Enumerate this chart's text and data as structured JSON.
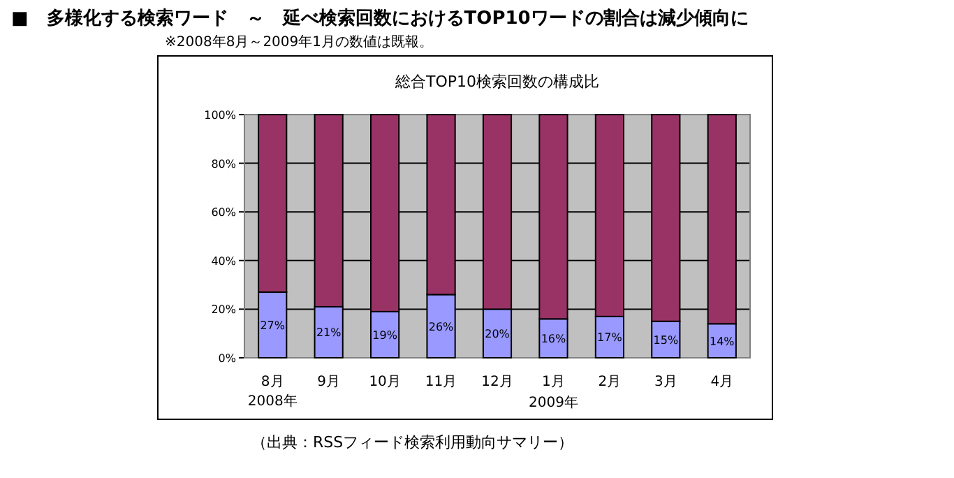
{
  "chart_data": {
    "type": "bar",
    "stacked": true,
    "title": "■　多様化する検索ワード　～　延べ検索回数におけるTOP10ワードの割合は減少傾向に",
    "subtitle": "総合TOP10検索回数の構成比",
    "categories": [
      "8月",
      "9月",
      "10月",
      "11月",
      "12月",
      "1月",
      "2月",
      "3月",
      "4月"
    ],
    "series": [
      {
        "color": "#9999ff",
        "values": [
          27,
          21,
          19,
          26,
          20,
          16,
          17,
          15,
          14
        ],
        "value_labels": [
          "27%",
          "21%",
          "19%",
          "26%",
          "20%",
          "16%",
          "17%",
          "15%",
          "14%"
        ]
      },
      {
        "color": "#993366",
        "values": [
          73,
          79,
          81,
          74,
          80,
          84,
          83,
          85,
          86
        ]
      }
    ],
    "ylim": [
      0,
      100
    ],
    "yticks": [
      {
        "value": 0,
        "label": "0%"
      },
      {
        "value": 20,
        "label": "20%"
      },
      {
        "value": 40,
        "label": "40%"
      },
      {
        "value": 60,
        "label": "60%"
      },
      {
        "value": 80,
        "label": "80%"
      },
      {
        "value": 100,
        "label": "100%"
      }
    ],
    "grid": "y",
    "annotations": [
      "※2008年8月～2009年1月の数値は既報。",
      "2008年",
      "2009年",
      "（出典：RSSフィード検索利用動向サマリー）"
    ]
  }
}
